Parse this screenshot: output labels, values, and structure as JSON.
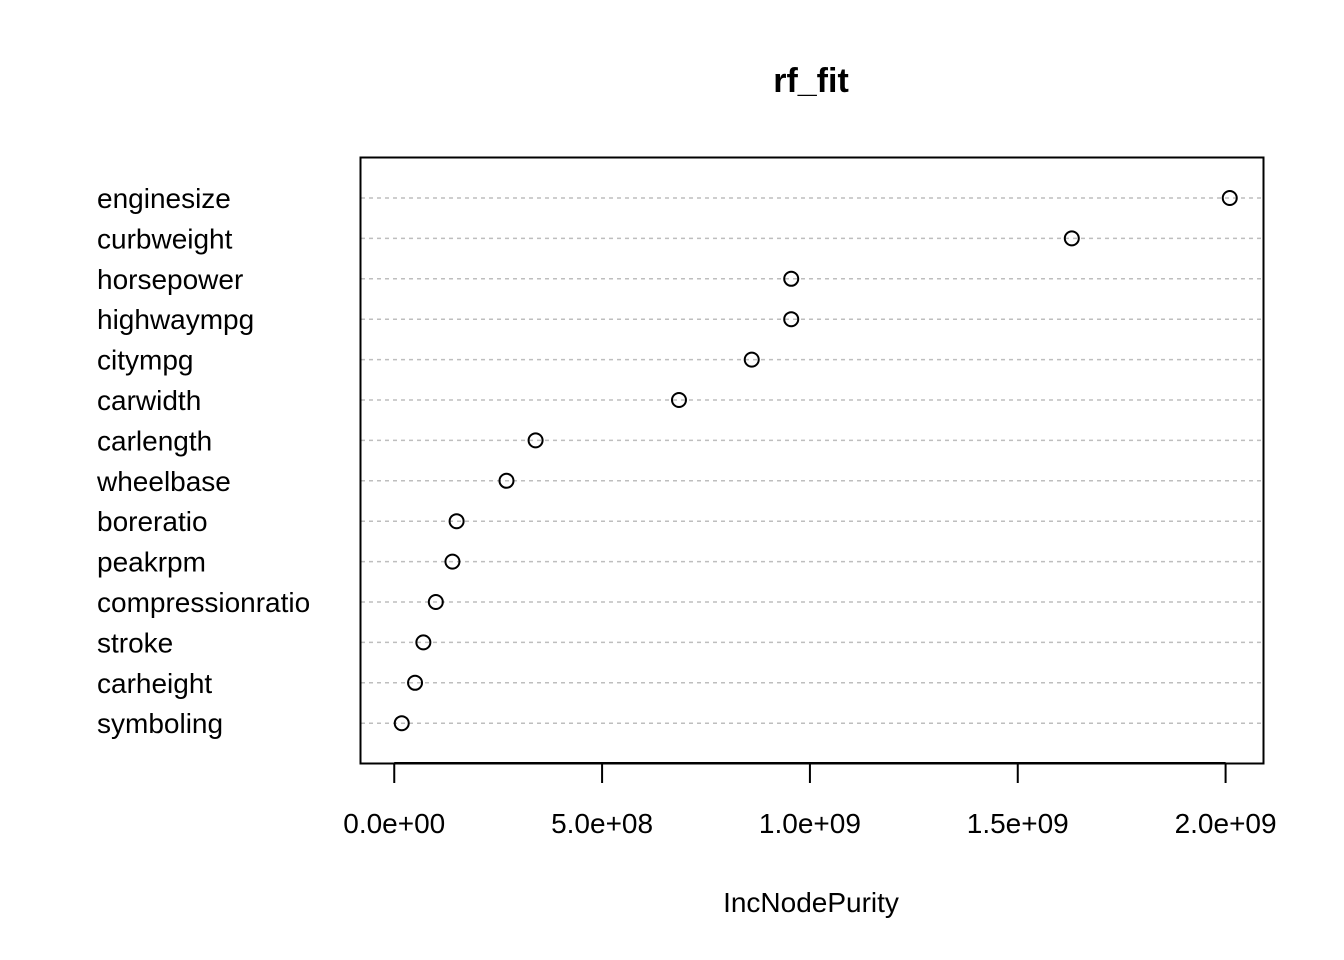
{
  "chart_data": {
    "type": "scatter",
    "subtype": "dotchart",
    "title": "rf_fit",
    "xlabel": "IncNodePurity",
    "ylabel": "",
    "xlim": [
      -80000000.0,
      2090000000.0
    ],
    "x_ticks": [
      0,
      500000000,
      1000000000,
      1500000000,
      2000000000
    ],
    "x_tick_labels": [
      "0.0e+00",
      "5.0e+08",
      "1.0e+09",
      "1.5e+09",
      "2.0e+09"
    ],
    "grid": "horizontal dashed gray",
    "categories": [
      "enginesize",
      "curbweight",
      "horsepower",
      "highwaympg",
      "citympg",
      "carwidth",
      "carlength",
      "wheelbase",
      "boreratio",
      "peakrpm",
      "compressionratio",
      "stroke",
      "carheight",
      "symboling"
    ],
    "values": [
      2010000000,
      1630000000,
      955000000,
      955000000,
      860000000,
      685000000,
      340000000,
      270000000,
      150000000,
      140000000,
      100000000,
      70000000,
      50000000,
      18000000
    ],
    "colors": {
      "point_stroke": "#000000",
      "grid": "#bebebe",
      "frame": "#000000"
    }
  }
}
